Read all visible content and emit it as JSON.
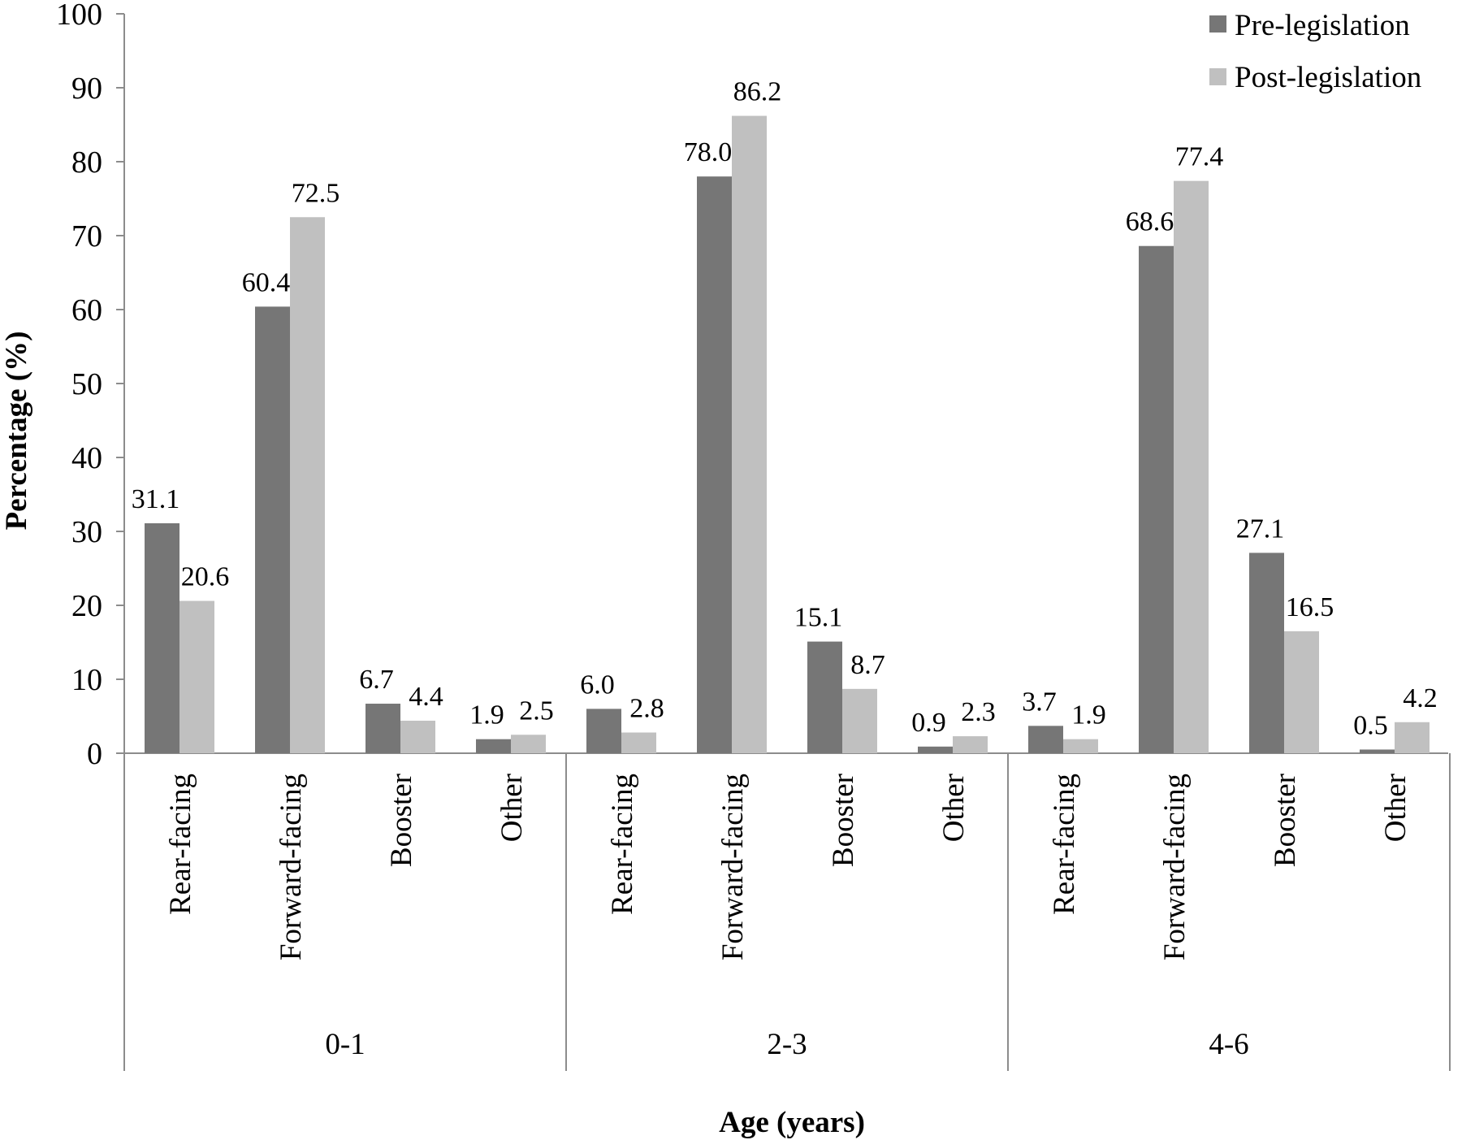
{
  "chart_data": {
    "type": "bar",
    "ylabel": "Percentage (%)",
    "xlabel": "Age (years)",
    "ylim": [
      0,
      100
    ],
    "yticks": [
      "0",
      "10",
      "20",
      "30",
      "40",
      "50",
      "60",
      "70",
      "80",
      "90",
      "100"
    ],
    "grid": false,
    "legend_position": "top-right",
    "groups": [
      {
        "label": "0-1",
        "categories": [
          "Rear-facing",
          "Forward-facing",
          "Booster",
          "Other"
        ]
      },
      {
        "label": "2-3",
        "categories": [
          "Rear-facing",
          "Forward-facing",
          "Booster",
          "Other"
        ]
      },
      {
        "label": "4-6",
        "categories": [
          "Rear-facing",
          "Forward-facing",
          "Booster",
          "Other"
        ]
      }
    ],
    "series": [
      {
        "name": "Pre-legislation",
        "color": "#767676",
        "values": [
          31.1,
          60.4,
          6.7,
          1.9,
          6.0,
          78.0,
          15.1,
          0.9,
          3.7,
          68.6,
          27.1,
          0.5
        ],
        "labels": [
          "31.1",
          "60.4",
          "6.7",
          "1.9",
          "6.0",
          "78.0",
          "15.1",
          "0.9",
          "3.7",
          "68.6",
          "27.1",
          "0.5"
        ]
      },
      {
        "name": "Post-legislation",
        "color": "#c0c0c0",
        "values": [
          20.6,
          72.5,
          4.4,
          2.5,
          2.8,
          86.2,
          8.7,
          2.3,
          1.9,
          77.4,
          16.5,
          4.2
        ],
        "labels": [
          "20.6",
          "72.5",
          "4.4",
          "2.5",
          "2.8",
          "86.2",
          "8.7",
          "2.3",
          "1.9",
          "77.4",
          "16.5",
          "4.2"
        ]
      }
    ]
  }
}
